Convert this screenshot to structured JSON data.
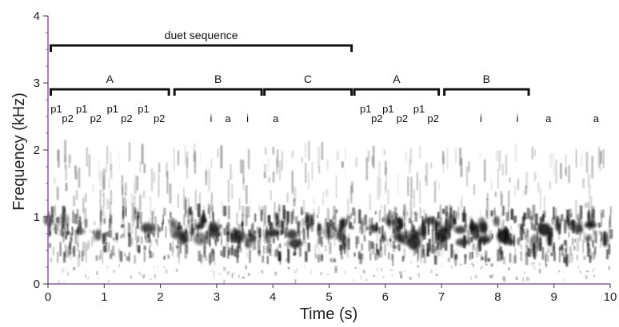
{
  "chart_data": {
    "type": "spectrogram",
    "xlabel": "Time (s)",
    "ylabel": "Frequency (kHz)",
    "xlim": [
      0,
      10
    ],
    "ylim": [
      0,
      4
    ],
    "x_ticks": [
      0,
      1,
      2,
      3,
      4,
      5,
      6,
      7,
      8,
      9,
      10
    ],
    "y_ticks": [
      0,
      1,
      2,
      3,
      4
    ],
    "energy_band_khz": [
      0.3,
      1.5
    ],
    "colors": {
      "axis": "#8a5aa8",
      "ink": "#111111",
      "text": "#222222"
    },
    "annotations": {
      "top_bracket": {
        "label": "duet sequence",
        "start": 0.05,
        "end": 5.4
      },
      "segments": [
        {
          "label": "A",
          "start": 0.05,
          "end": 2.15
        },
        {
          "label": "B",
          "start": 2.25,
          "end": 3.8
        },
        {
          "label": "C",
          "start": 3.85,
          "end": 5.4
        },
        {
          "label": "A",
          "start": 5.45,
          "end": 6.95
        },
        {
          "label": "B",
          "start": 7.05,
          "end": 8.55
        }
      ],
      "syllables": [
        {
          "label": "p1",
          "t": 0.15,
          "row": "upper"
        },
        {
          "label": "p2",
          "t": 0.35,
          "row": "lower"
        },
        {
          "label": "p1",
          "t": 0.6,
          "row": "upper"
        },
        {
          "label": "p2",
          "t": 0.85,
          "row": "lower"
        },
        {
          "label": "p1",
          "t": 1.15,
          "row": "upper"
        },
        {
          "label": "p2",
          "t": 1.4,
          "row": "lower"
        },
        {
          "label": "p1",
          "t": 1.7,
          "row": "upper"
        },
        {
          "label": "p2",
          "t": 1.98,
          "row": "lower"
        },
        {
          "label": "i",
          "t": 2.9,
          "row": "lower"
        },
        {
          "label": "a",
          "t": 3.2,
          "row": "lower"
        },
        {
          "label": "i",
          "t": 3.55,
          "row": "lower"
        },
        {
          "label": "a",
          "t": 4.05,
          "row": "lower"
        },
        {
          "label": "p1",
          "t": 5.65,
          "row": "upper"
        },
        {
          "label": "p2",
          "t": 5.85,
          "row": "lower"
        },
        {
          "label": "p1",
          "t": 6.05,
          "row": "upper"
        },
        {
          "label": "p2",
          "t": 6.3,
          "row": "lower"
        },
        {
          "label": "p1",
          "t": 6.6,
          "row": "upper"
        },
        {
          "label": "p2",
          "t": 6.85,
          "row": "lower"
        },
        {
          "label": "i",
          "t": 7.7,
          "row": "lower"
        },
        {
          "label": "i",
          "t": 8.35,
          "row": "lower"
        },
        {
          "label": "a",
          "t": 8.9,
          "row": "lower"
        },
        {
          "label": "a",
          "t": 9.75,
          "row": "lower"
        }
      ]
    }
  }
}
